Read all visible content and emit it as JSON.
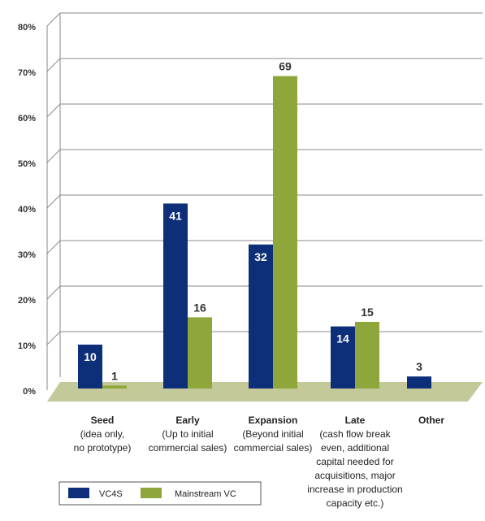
{
  "colors": {
    "vc4s": "#0d2f7a",
    "mainstream": "#8fa63a",
    "floor": "#c3c998",
    "grid": "#8a8a8a"
  },
  "chart_data": {
    "type": "bar",
    "y_ticks": [
      "0%",
      "10%",
      "20%",
      "30%",
      "40%",
      "50%",
      "60%",
      "70%",
      "80%"
    ],
    "ylim": [
      0,
      80
    ],
    "grid": true,
    "legend_position": "bottom-left",
    "categories": [
      {
        "title": "Seed",
        "sub": [
          "(idea only,",
          "no prototype)"
        ]
      },
      {
        "title": "Early",
        "sub": [
          "(Up to initial",
          "commercial sales)"
        ]
      },
      {
        "title": "Expansion",
        "sub": [
          "(Beyond initial",
          "commercial sales)"
        ]
      },
      {
        "title": "Late",
        "sub": [
          "(cash flow break",
          "even, additional",
          "capital needed for",
          "acquisitions, major",
          "increase in production",
          "capacity etc.)"
        ]
      },
      {
        "title": "Other",
        "sub": []
      }
    ],
    "series": [
      {
        "name": "VC4S",
        "values": [
          10,
          41,
          32,
          14,
          3
        ],
        "labels": [
          "10",
          "41",
          "32",
          "14",
          "3"
        ]
      },
      {
        "name": "Mainstream VC",
        "values": [
          1,
          16,
          69,
          15,
          null
        ],
        "labels": [
          "1",
          "16",
          "69",
          "15",
          ""
        ]
      }
    ]
  }
}
